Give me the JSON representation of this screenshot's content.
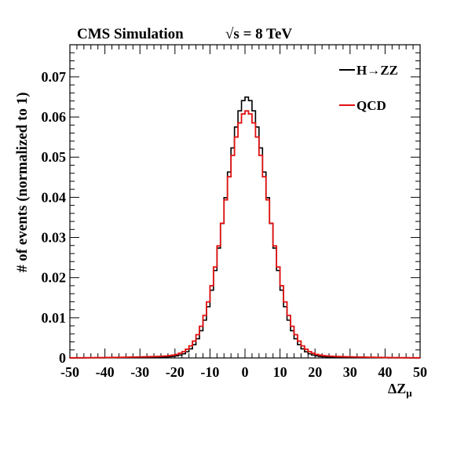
{
  "header": {
    "experiment": "CMS Simulation",
    "energy_prefix": "√s = 8 TeV"
  },
  "chart_data": {
    "type": "histogram",
    "xlabel": "ΔZ",
    "xlabel_sub": "μ",
    "ylabel": "# of events (normalized to 1)",
    "xlim": [
      -50,
      50
    ],
    "ylim": [
      0,
      0.078
    ],
    "x_ticks": [
      -50,
      -40,
      -30,
      -20,
      -10,
      0,
      10,
      20,
      30,
      40,
      50
    ],
    "x_tick_labels": [
      "-50",
      "-40",
      "-30",
      "-20",
      "-10",
      "0",
      "10",
      "20",
      "30",
      "40",
      "50"
    ],
    "y_ticks": [
      0,
      0.01,
      0.02,
      0.03,
      0.04,
      0.05,
      0.06,
      0.07
    ],
    "y_tick_labels": [
      "0",
      "0.01",
      "0.02",
      "0.03",
      "0.04",
      "0.05",
      "0.06",
      "0.07"
    ],
    "legend_position": "top-right",
    "series": [
      {
        "name": "H→ZZ",
        "color": "#000000",
        "mean": 0.5,
        "sigma": 6.05,
        "tail_fraction": 0.02
      },
      {
        "name": "QCD",
        "color": "#e01010",
        "mean": 0.5,
        "sigma": 6.3,
        "tail_fraction": 0.04
      }
    ]
  }
}
